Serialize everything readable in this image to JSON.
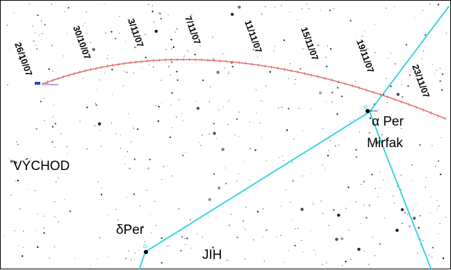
{
  "colors": {
    "background": "#ffffff",
    "path": "#e06a6a",
    "constellation": "#38d4e0",
    "stars": "#000000",
    "comet_marker": "#1a3fd0"
  },
  "path_dates": [
    "26/10/07",
    "30/10/07",
    "3/11/07",
    "7/11/07",
    "11/11/07",
    "15/11/07",
    "19/11/07",
    "23/11/07"
  ],
  "labels": {
    "east": "VÝCHOD",
    "south": "JIH",
    "alpha_per_line1": "α Per",
    "alpha_per_line2": "Mirfak",
    "delta_per": "δPer",
    "comet_tag": "17P/Holmes",
    "mirfak_tag": "Mirfak"
  }
}
